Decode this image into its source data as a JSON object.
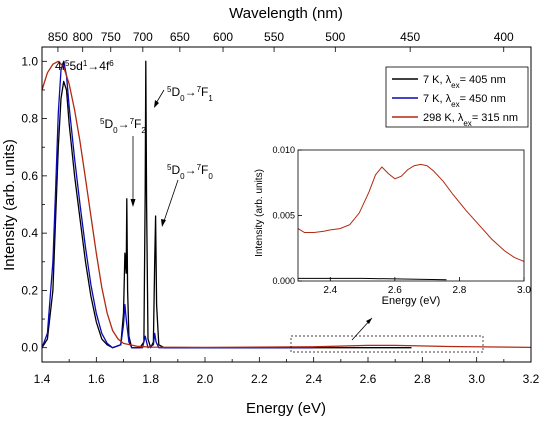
{
  "chart_data": {
    "type": "line",
    "xlabel": "Energy (eV)",
    "ylabel": "Intensity (arb. units)",
    "top_axis_label": "Wavelength (nm)",
    "xlim": [
      1.4,
      3.2
    ],
    "ylim": [
      -0.05,
      1.05
    ],
    "x_ticks": [
      "1.4",
      "1.6",
      "1.8",
      "2.0",
      "2.2",
      "2.4",
      "2.6",
      "2.8",
      "3.0",
      "3.2"
    ],
    "y_ticks": [
      "0.0",
      "0.2",
      "0.4",
      "0.6",
      "0.8",
      "1.0"
    ],
    "top_ticks": [
      {
        "nm": 850,
        "label": "850"
      },
      {
        "nm": 800,
        "label": "800"
      },
      {
        "nm": 750,
        "label": "750"
      },
      {
        "nm": 700,
        "label": "700"
      },
      {
        "nm": 650,
        "label": "650"
      },
      {
        "nm": 600,
        "label": "600"
      },
      {
        "nm": 550,
        "label": "550"
      },
      {
        "nm": 500,
        "label": "500"
      },
      {
        "nm": 450,
        "label": "450"
      },
      {
        "nm": 400,
        "label": "400"
      }
    ],
    "series": [
      {
        "name": "7 K, λex= 405 nm",
        "color": "#000000",
        "points": [
          [
            1.4,
            0.0
          ],
          [
            1.42,
            0.03
          ],
          [
            1.44,
            0.2
          ],
          [
            1.45,
            0.45
          ],
          [
            1.46,
            0.7
          ],
          [
            1.47,
            0.87
          ],
          [
            1.48,
            0.93
          ],
          [
            1.49,
            0.9
          ],
          [
            1.5,
            0.78
          ],
          [
            1.52,
            0.6
          ],
          [
            1.54,
            0.45
          ],
          [
            1.56,
            0.3
          ],
          [
            1.58,
            0.18
          ],
          [
            1.6,
            0.09
          ],
          [
            1.62,
            0.03
          ],
          [
            1.64,
            0.01
          ],
          [
            1.66,
            0.0
          ],
          [
            1.69,
            0.01
          ],
          [
            1.7,
            0.12
          ],
          [
            1.705,
            0.33
          ],
          [
            1.71,
            0.26
          ],
          [
            1.712,
            0.52
          ],
          [
            1.715,
            0.2
          ],
          [
            1.72,
            0.04
          ],
          [
            1.73,
            0.0
          ],
          [
            1.76,
            0.0
          ],
          [
            1.775,
            0.02
          ],
          [
            1.78,
            0.55
          ],
          [
            1.782,
            1.0
          ],
          [
            1.785,
            0.5
          ],
          [
            1.79,
            0.03
          ],
          [
            1.8,
            0.0
          ],
          [
            1.81,
            0.02
          ],
          [
            1.815,
            0.3
          ],
          [
            1.818,
            0.46
          ],
          [
            1.822,
            0.15
          ],
          [
            1.83,
            0.01
          ],
          [
            1.85,
            0.0
          ],
          [
            2.0,
            0.0
          ],
          [
            2.4,
            0.0
          ],
          [
            2.76,
            0.0
          ]
        ]
      },
      {
        "name": "7 K, λex= 450 nm",
        "color": "#0a0ab4",
        "points": [
          [
            1.4,
            0.0
          ],
          [
            1.42,
            0.05
          ],
          [
            1.44,
            0.3
          ],
          [
            1.45,
            0.55
          ],
          [
            1.46,
            0.82
          ],
          [
            1.47,
            0.97
          ],
          [
            1.48,
            1.0
          ],
          [
            1.49,
            0.95
          ],
          [
            1.5,
            0.84
          ],
          [
            1.52,
            0.66
          ],
          [
            1.54,
            0.5
          ],
          [
            1.56,
            0.35
          ],
          [
            1.58,
            0.22
          ],
          [
            1.6,
            0.12
          ],
          [
            1.62,
            0.05
          ],
          [
            1.64,
            0.015
          ],
          [
            1.66,
            0.0
          ],
          [
            1.69,
            0.01
          ],
          [
            1.7,
            0.08
          ],
          [
            1.705,
            0.15
          ],
          [
            1.71,
            0.1
          ],
          [
            1.72,
            0.02
          ],
          [
            1.73,
            0.0
          ],
          [
            1.77,
            0.0
          ],
          [
            1.78,
            0.04
          ],
          [
            1.785,
            0.02
          ],
          [
            1.79,
            0.0
          ],
          [
            1.81,
            0.01
          ],
          [
            1.815,
            0.05
          ],
          [
            1.82,
            0.02
          ],
          [
            1.83,
            0.0
          ],
          [
            2.0,
            0.0
          ],
          [
            2.4,
            0.0
          ]
        ]
      },
      {
        "name": "298 K, λex= 315 nm",
        "color": "#b22a10",
        "points": [
          [
            1.4,
            0.9
          ],
          [
            1.42,
            0.96
          ],
          [
            1.44,
            0.99
          ],
          [
            1.46,
            1.0
          ],
          [
            1.48,
            0.98
          ],
          [
            1.5,
            0.92
          ],
          [
            1.52,
            0.83
          ],
          [
            1.54,
            0.72
          ],
          [
            1.56,
            0.59
          ],
          [
            1.58,
            0.46
          ],
          [
            1.6,
            0.33
          ],
          [
            1.62,
            0.21
          ],
          [
            1.64,
            0.12
          ],
          [
            1.66,
            0.06
          ],
          [
            1.68,
            0.03
          ],
          [
            1.7,
            0.015
          ],
          [
            1.75,
            0.005
          ],
          [
            1.8,
            0.002
          ],
          [
            2.0,
            0.001
          ],
          [
            2.4,
            0.003
          ],
          [
            2.6,
            0.008
          ],
          [
            2.7,
            0.008
          ],
          [
            2.9,
            0.004
          ],
          [
            3.2,
            0.001
          ]
        ]
      }
    ],
    "legend": {
      "position": "top-right",
      "entries": [
        {
          "label": "7 K, λex= 405 nm",
          "color": "#000000"
        },
        {
          "label": "7 K, λex= 450 nm",
          "color": "#0a0ab4"
        },
        {
          "label": "298 K, λex= 315 nm",
          "color": "#b22a10"
        }
      ]
    },
    "annotations": [
      {
        "id": "fd",
        "html": "4f<tspan baseline-shift=\"super\" font-size=\"8\">5</tspan>5d<tspan baseline-shift=\"super\" font-size=\"8\">1</tspan>→4f<tspan baseline-shift=\"super\" font-size=\"8\">6</tspan>"
      },
      {
        "id": "f2",
        "html": "<tspan baseline-shift=\"super\" font-size=\"8\">5</tspan>D<tspan baseline-shift=\"sub\" font-size=\"8\">0</tspan>→<tspan baseline-shift=\"super\" font-size=\"8\">7</tspan>F<tspan baseline-shift=\"sub\" font-size=\"8\">2</tspan>"
      },
      {
        "id": "f1",
        "html": "<tspan baseline-shift=\"super\" font-size=\"8\">5</tspan>D<tspan baseline-shift=\"sub\" font-size=\"8\">0</tspan>→<tspan baseline-shift=\"super\" font-size=\"8\">7</tspan>F<tspan baseline-shift=\"sub\" font-size=\"8\">1</tspan>"
      },
      {
        "id": "f0",
        "html": "<tspan baseline-shift=\"super\" font-size=\"8\">5</tspan>D<tspan baseline-shift=\"sub\" font-size=\"8\">0</tspan>→<tspan baseline-shift=\"super\" font-size=\"8\">7</tspan>F<tspan baseline-shift=\"sub\" font-size=\"8\">0</tspan>"
      }
    ],
    "inset": {
      "xlabel": "Energy (eV)",
      "ylabel": "Intensity (arb. units)",
      "xlim": [
        2.3,
        3.0
      ],
      "ylim": [
        0.0,
        0.01
      ],
      "x_ticks": [
        "2.4",
        "2.6",
        "2.8",
        "3.0"
      ],
      "y_ticks": [
        "0.000",
        "0.005",
        "0.010"
      ],
      "series": [
        {
          "name": "298 K, λex= 315 nm",
          "color": "#b22a10",
          "points": [
            [
              2.3,
              0.004
            ],
            [
              2.32,
              0.0037
            ],
            [
              2.35,
              0.0037
            ],
            [
              2.38,
              0.0038
            ],
            [
              2.4,
              0.0039
            ],
            [
              2.43,
              0.004
            ],
            [
              2.46,
              0.0043
            ],
            [
              2.49,
              0.0052
            ],
            [
              2.52,
              0.0068
            ],
            [
              2.54,
              0.0081
            ],
            [
              2.56,
              0.0087
            ],
            [
              2.58,
              0.0082
            ],
            [
              2.6,
              0.0078
            ],
            [
              2.62,
              0.008
            ],
            [
              2.64,
              0.0085
            ],
            [
              2.66,
              0.0088
            ],
            [
              2.68,
              0.0089
            ],
            [
              2.7,
              0.0088
            ],
            [
              2.72,
              0.0084
            ],
            [
              2.75,
              0.0076
            ],
            [
              2.78,
              0.0066
            ],
            [
              2.82,
              0.0054
            ],
            [
              2.86,
              0.0043
            ],
            [
              2.9,
              0.0032
            ],
            [
              2.94,
              0.0023
            ],
            [
              2.97,
              0.0018
            ],
            [
              3.0,
              0.0015
            ]
          ]
        },
        {
          "name": "7 K, λex= 405 nm",
          "color": "#000000",
          "points": [
            [
              2.3,
              0.0002
            ],
            [
              2.5,
              0.0002
            ],
            [
              2.76,
              0.0001
            ]
          ]
        }
      ]
    }
  }
}
